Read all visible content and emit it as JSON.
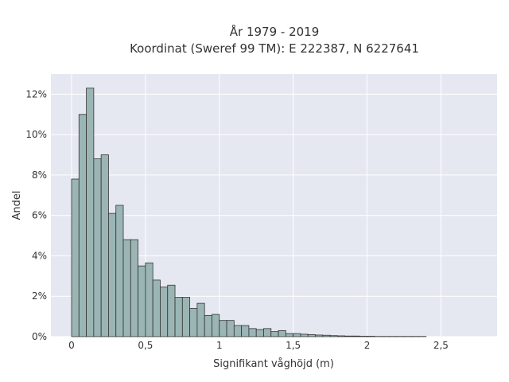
{
  "chart_data": {
    "type": "bar",
    "title": "År 1979 - 2019",
    "subtitle": "Koordinat (Sweref 99 TM): E 222387, N 6227641",
    "xlabel": "Signifikant våghöjd (m)",
    "ylabel": "Andel",
    "xlim": [
      -0.14,
      2.88
    ],
    "ylim": [
      0,
      13
    ],
    "bin_width": 0.05,
    "x_ticks": [
      0,
      0.5,
      1,
      1.5,
      2,
      2.5
    ],
    "x_tick_labels": [
      "0",
      "0,5",
      "1",
      "1,5",
      "2",
      "2,5"
    ],
    "y_ticks": [
      0,
      2,
      4,
      6,
      8,
      10,
      12
    ],
    "y_tick_labels": [
      "0%",
      "2%",
      "4%",
      "6%",
      "8%",
      "10%",
      "12%"
    ],
    "grid": true,
    "bar_color": "#9bb5b5",
    "bar_edge_color": "#333333",
    "plot_background": "#e5e8f0",
    "values": [
      7.8,
      11.0,
      12.3,
      8.8,
      9.0,
      6.1,
      6.5,
      4.8,
      4.8,
      3.5,
      3.65,
      2.8,
      2.45,
      2.55,
      1.95,
      1.95,
      1.4,
      1.65,
      1.05,
      1.1,
      0.8,
      0.8,
      0.55,
      0.55,
      0.4,
      0.35,
      0.4,
      0.25,
      0.3,
      0.15,
      0.15,
      0.12,
      0.1,
      0.08,
      0.07,
      0.05,
      0.04,
      0.03,
      0.03,
      0.02,
      0.02,
      0.01,
      0.01,
      0.01,
      0.01,
      0.01,
      0.01,
      0.01
    ]
  }
}
